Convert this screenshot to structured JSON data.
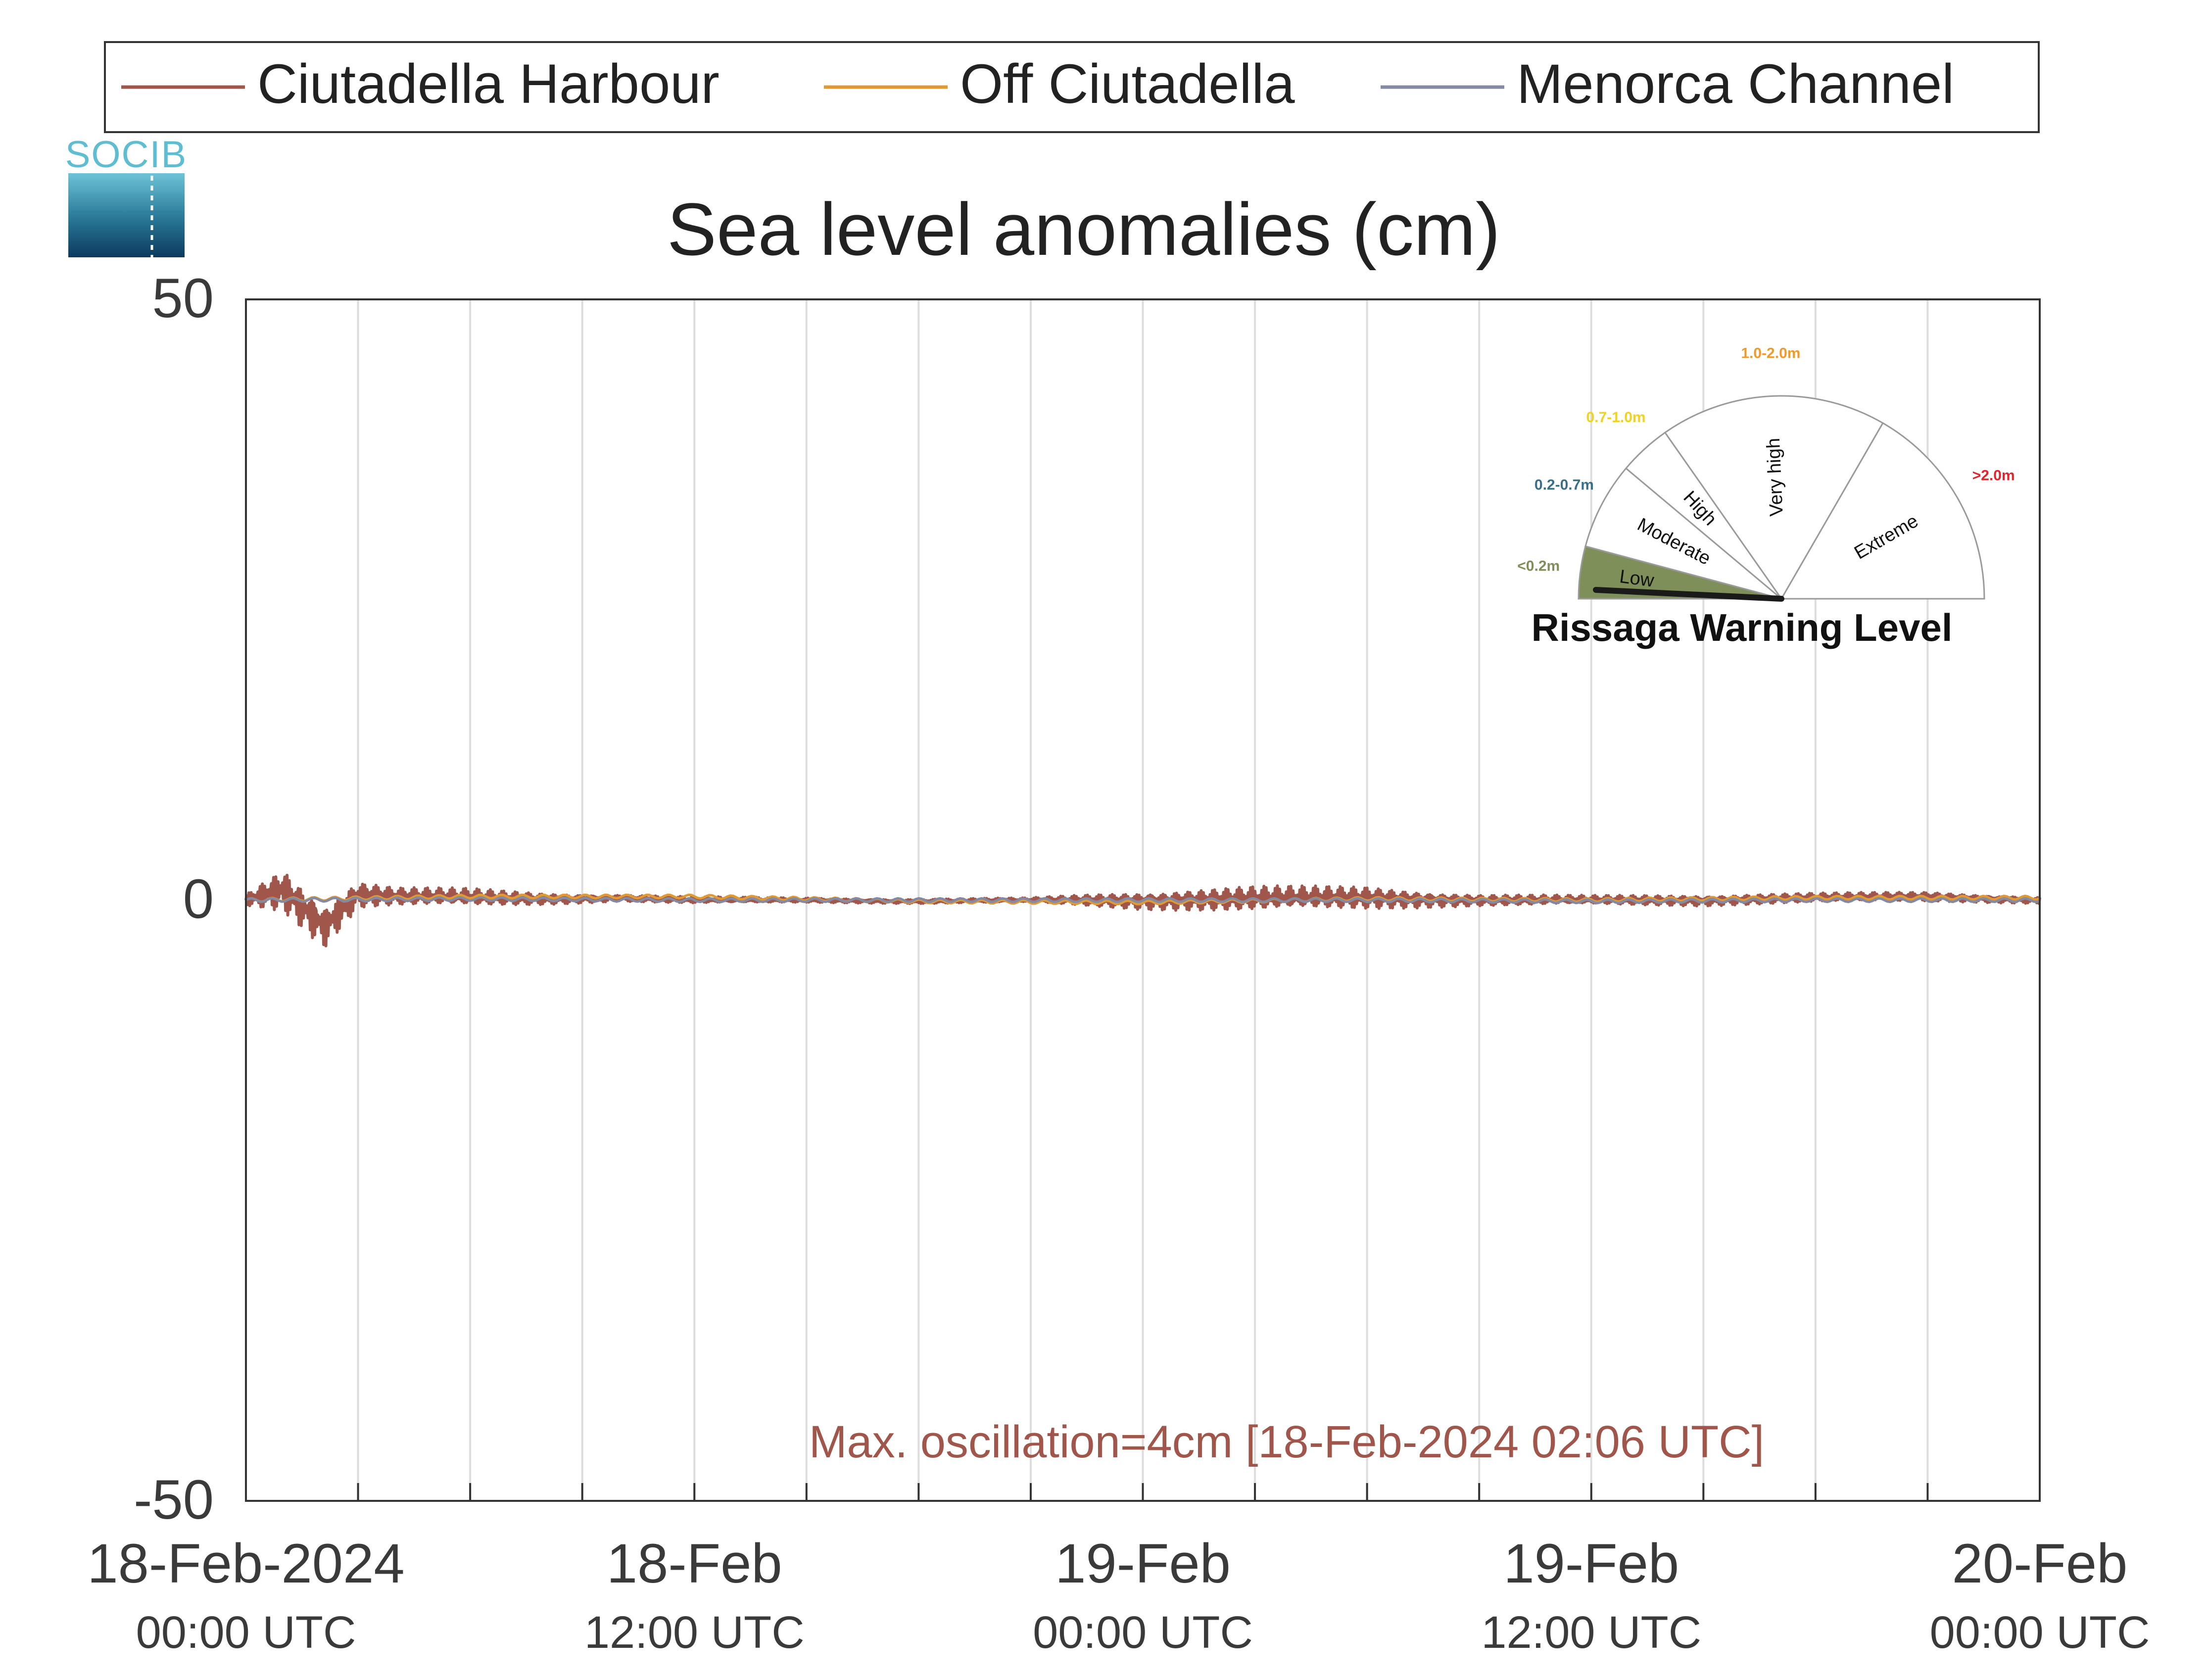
{
  "chart_data": {
    "type": "line",
    "title": "Sea level anomalies (cm)",
    "xlabel": "",
    "ylabel": "",
    "ylim": [
      -50,
      50
    ],
    "y_ticks": [
      50,
      0,
      -50
    ],
    "x_range": [
      "2024-02-18T00:00Z",
      "2024-02-20T00:00Z"
    ],
    "x_ticks": [
      {
        "x": "2024-02-18T00:00Z",
        "label": "18-Feb-2024",
        "sublabel": "00:00 UTC"
      },
      {
        "x": "2024-02-18T12:00Z",
        "label": "18-Feb",
        "sublabel": "12:00 UTC"
      },
      {
        "x": "2024-02-19T00:00Z",
        "label": "19-Feb",
        "sublabel": "00:00 UTC"
      },
      {
        "x": "2024-02-19T12:00Z",
        "label": "19-Feb",
        "sublabel": "12:00 UTC"
      },
      {
        "x": "2024-02-20T00:00Z",
        "label": "20-Feb",
        "sublabel": "00:00 UTC"
      }
    ],
    "grid": "vertical-every-3h",
    "legend_position": "top",
    "series": [
      {
        "name": "Ciutadella Harbour",
        "color": "#a0564a",
        "x": [
          "2024-02-18T00:00Z",
          "2024-02-18T01:00Z",
          "2024-02-18T02:06Z",
          "2024-02-18T03:00Z",
          "2024-02-18T04:00Z",
          "2024-02-18T06:00Z",
          "2024-02-18T08:00Z",
          "2024-02-18T10:00Z",
          "2024-02-18T12:00Z",
          "2024-02-18T15:00Z",
          "2024-02-18T18:00Z",
          "2024-02-18T21:00Z",
          "2024-02-19T00:00Z",
          "2024-02-19T03:00Z",
          "2024-02-19T06:00Z",
          "2024-02-19T09:00Z",
          "2024-02-19T12:00Z",
          "2024-02-19T15:00Z",
          "2024-02-19T18:00Z",
          "2024-02-19T21:00Z",
          "2024-02-20T00:00Z"
        ],
        "y": [
          0,
          1,
          -2,
          0.5,
          0.3,
          0.2,
          0.1,
          0.2,
          0,
          0,
          -0.1,
          0,
          0,
          0.1,
          0.2,
          0,
          0,
          0,
          0.2,
          0.3,
          0
        ],
        "amplitude": [
          0.5,
          2,
          2,
          1.2,
          0.8,
          0.8,
          0.5,
          0.3,
          0.3,
          0.2,
          0.2,
          0.2,
          0.8,
          1.1,
          1.0,
          0.5,
          0.4,
          0.5,
          0.4,
          0.4,
          0.3
        ]
      },
      {
        "name": "Off Ciutadella",
        "color": "#e09a35",
        "x": [
          "2024-02-18T00:00Z",
          "2024-02-18T06:00Z",
          "2024-02-18T12:00Z",
          "2024-02-18T18:00Z",
          "2024-02-19T00:00Z",
          "2024-02-19T06:00Z",
          "2024-02-19T12:00Z",
          "2024-02-19T18:00Z",
          "2024-02-20T00:00Z"
        ],
        "y": [
          0,
          0.3,
          0.3,
          -0.1,
          -0.2,
          0.1,
          0,
          0.2,
          0.2
        ]
      },
      {
        "name": "Menorca Channel",
        "color": "#858aa3",
        "x": [
          "2024-02-18T00:00Z",
          "2024-02-18T06:00Z",
          "2024-02-18T12:00Z",
          "2024-02-18T18:00Z",
          "2024-02-19T00:00Z",
          "2024-02-19T06:00Z",
          "2024-02-19T12:00Z",
          "2024-02-19T18:00Z",
          "2024-02-20T00:00Z"
        ],
        "y": [
          0,
          0.1,
          0,
          0,
          0,
          0,
          -0.1,
          0,
          0
        ]
      }
    ],
    "annotation": {
      "text": "Max. oscillation=4cm [18-Feb-2024 02:06 UTC]",
      "color": "#a0564a",
      "position": "bottom-center"
    },
    "inset": {
      "title": "Rissaga Warning Level",
      "position": "top-right",
      "current_level": "Low",
      "levels": [
        {
          "name": "Low",
          "range": "<0.2m",
          "color": "#7f8f5a"
        },
        {
          "name": "Moderate",
          "range": "0.2-0.7m",
          "color": "#3a6f88"
        },
        {
          "name": "High",
          "range": "0.7-1.0m",
          "color": "#f0d321"
        },
        {
          "name": "Very high",
          "range": "1.0-2.0m",
          "color": "#ef9a2a"
        },
        {
          "name": "Extreme",
          "range": ">2.0m",
          "color": "#e3242b"
        }
      ]
    }
  },
  "logo": {
    "text": "SOCIB"
  }
}
